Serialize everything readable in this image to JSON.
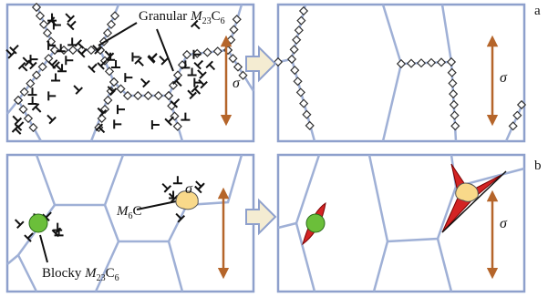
{
  "panel_a": {
    "label": "a",
    "granular": {
      "word": "Granular",
      "m": "M",
      "m_sub": "23",
      "c": "C",
      "c_sub": "6"
    },
    "sigma_before": "σ",
    "sigma_after": "σ"
  },
  "panel_b": {
    "label": "b",
    "m6c": {
      "m": "M",
      "m_sub": "6",
      "c": "C"
    },
    "blocky": {
      "word": "Blocky",
      "m": "M",
      "m_sub": "23",
      "c": "C",
      "c_sub": "6"
    },
    "sigma_before": "σ",
    "sigma_after": "σ"
  }
}
